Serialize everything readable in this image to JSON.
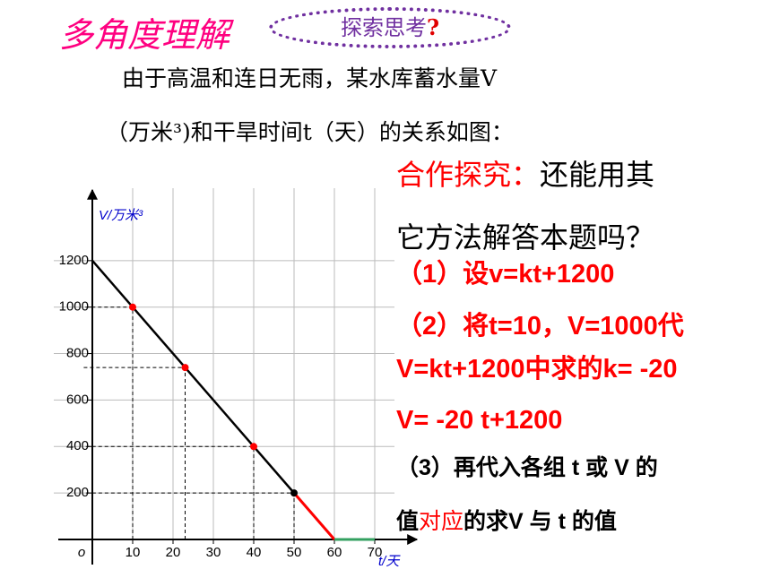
{
  "header": {
    "title": "多角度理解",
    "badge": "探索思考",
    "badge_mark": "?"
  },
  "intro": [
    "由于高温和连日无雨，某水库蓄水量V",
    "（万米³)和干旱时间t（天）的关系如图："
  ],
  "collab": {
    "label": "合作探究：",
    "text": "还能用其",
    "line2": "它方法解答本题吗？"
  },
  "steps": [
    "（1）设v=kt+1200",
    "（2）将t=10，V=1000代",
    "V=kt+1200中求的k= -20",
    "V= -20 t+1200",
    "（3）再代入各组 t 或 V 的"
  ],
  "last_line": {
    "before": "值",
    "highlight": "对应",
    "after": "的求V 与 t  的值"
  },
  "chart_data": {
    "type": "line",
    "x_label": "t/天",
    "y_label": "V/万米³",
    "xlim": [
      0,
      78
    ],
    "ylim": [
      0,
      1450
    ],
    "xticks": [
      {
        "value": 0,
        "label": "o"
      },
      10,
      20,
      30,
      40,
      50,
      60,
      70
    ],
    "yticks": [
      200,
      400,
      600,
      800,
      1000,
      1200
    ],
    "grid": true,
    "series": [
      {
        "color": "#000000",
        "x": [
          0,
          60
        ],
        "values": [
          1200,
          0
        ]
      },
      {
        "color": "#ff0000",
        "x": [
          50,
          60
        ],
        "values": [
          200,
          0
        ]
      },
      {
        "color": "#33a060",
        "x": [
          60,
          70
        ],
        "values": [
          0,
          0
        ]
      }
    ],
    "points": {
      "x": [
        10,
        23,
        40,
        50
      ],
      "values": [
        1000,
        740,
        400,
        200
      ],
      "colors": [
        "#ff0000",
        "#ff0000",
        "#ff0000",
        "#000000"
      ]
    }
  }
}
